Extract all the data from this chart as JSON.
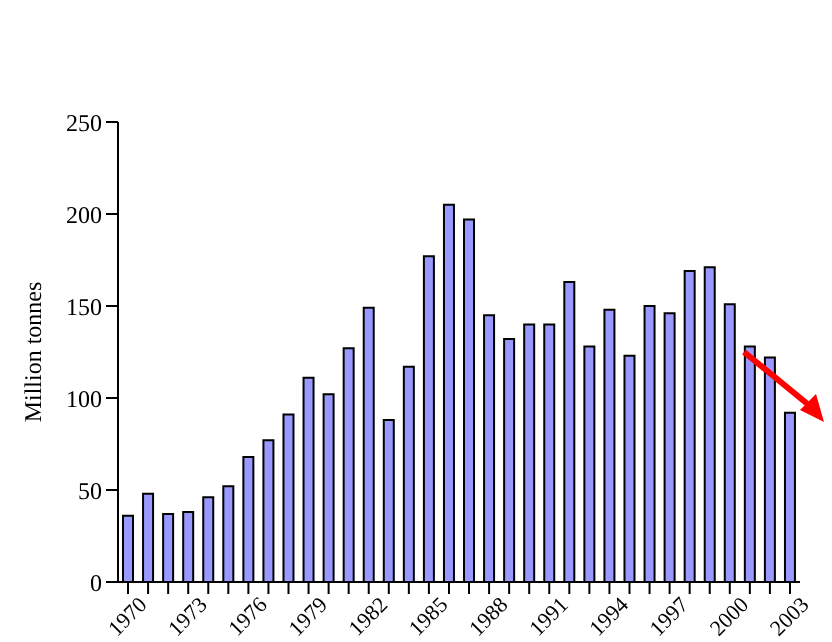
{
  "chart_data": {
    "type": "bar",
    "ylabel": "Million tonnes",
    "categories": [
      "1970",
      null,
      null,
      "1973",
      null,
      null,
      "1976",
      null,
      null,
      "1979",
      null,
      null,
      "1982",
      null,
      null,
      "1985",
      null,
      null,
      "1988",
      null,
      null,
      "1991",
      null,
      null,
      "1994",
      null,
      null,
      "1997",
      null,
      null,
      "2000",
      null,
      null,
      "2003"
    ],
    "values": [
      36,
      48,
      37,
      38,
      46,
      52,
      68,
      77,
      91,
      111,
      102,
      127,
      149,
      88,
      117,
      177,
      205,
      197,
      145,
      132,
      140,
      140,
      163,
      128,
      148,
      123,
      150,
      146,
      169,
      171,
      151,
      128,
      122,
      92
    ],
    "color": "#9999ff",
    "ylim": [
      0,
      250
    ],
    "yticks": [
      0,
      50,
      100,
      150,
      200,
      250
    ]
  }
}
